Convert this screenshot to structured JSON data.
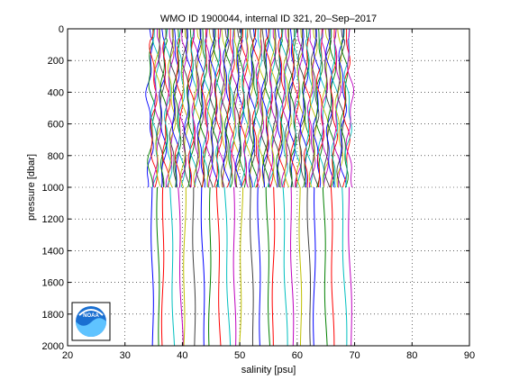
{
  "chart_data": {
    "type": "line",
    "title": "WMO ID 1900044, internal ID 321, 20–Sep–2017",
    "xlabel": "salinity [psu]",
    "ylabel": "pressure [dbar]",
    "xlim": [
      20,
      90
    ],
    "ylim": [
      0,
      2000
    ],
    "y_reversed": true,
    "grid": true,
    "x_ticks": [
      "20",
      "30",
      "40",
      "50",
      "60",
      "70",
      "80",
      "90"
    ],
    "y_ticks": [
      "0",
      "200",
      "400",
      "600",
      "800",
      "1000",
      "1200",
      "1400",
      "1600",
      "1800",
      "2000"
    ],
    "profiles_shallow": {
      "description_of_depth_range": [
        0,
        1000
      ],
      "count": 110,
      "salinity_start": 34.3,
      "salinity_end": 69.2
    },
    "profiles_deep": {
      "description_of_depth_range": [
        1000,
        2000
      ],
      "salinity_at_1000": [
        34.6,
        35.6,
        36.7,
        38.0,
        39.3,
        40.5,
        41.8,
        43.3,
        44.9,
        46.1,
        47.4,
        48.9,
        50.4,
        51.8,
        53.2,
        54.7,
        56.0,
        57.5,
        58.8,
        60.4,
        61.8,
        63.1,
        64.6,
        65.9,
        67.7,
        68.9
      ],
      "drift_at_2000": [
        0.3,
        0.4,
        -0.2,
        0.5,
        0.7,
        -0.3,
        0.4,
        0.6,
        -0.2,
        0.5,
        0.8,
        0.3,
        -0.4,
        0.6,
        0.4,
        0.5,
        -0.3,
        0.7,
        0.5,
        0.3,
        0.6,
        -0.2,
        0.5,
        0.4,
        0.9,
        0.6
      ]
    },
    "series_colors": [
      "#0000ff",
      "#008000",
      "#ff0000",
      "#00bfbf",
      "#bf00bf",
      "#bfbf00",
      "#404040"
    ]
  },
  "logo": {
    "text": "NOAA"
  }
}
